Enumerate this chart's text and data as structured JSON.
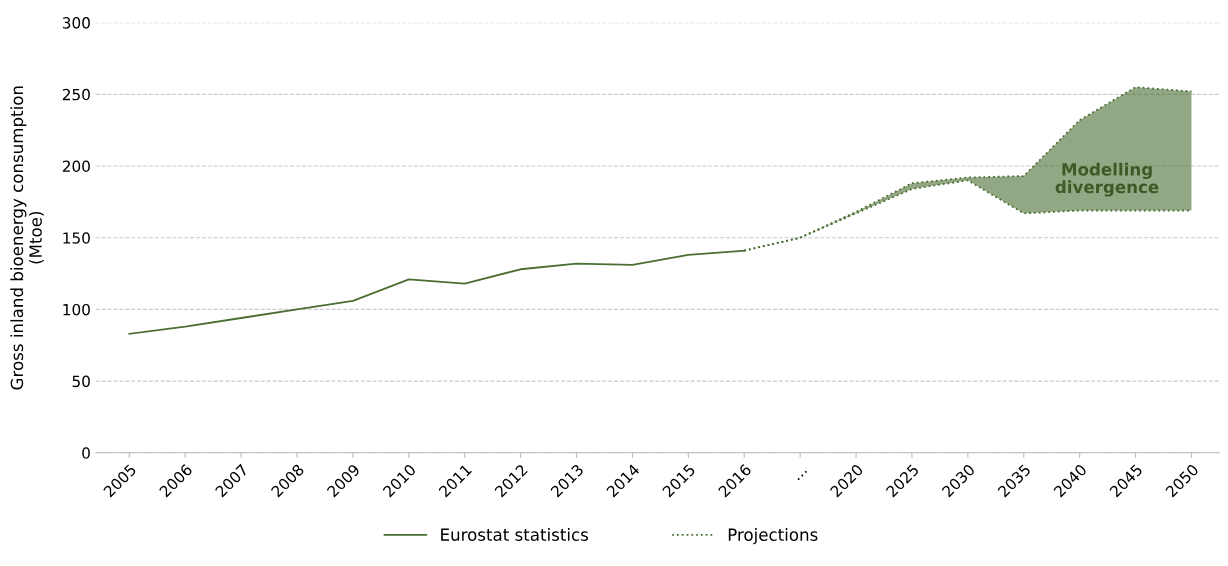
{
  "chart_data": {
    "type": "line",
    "ylabel": "Gross inland bioenergy consumption\n(Mtoe)",
    "categories": [
      "2005",
      "2006",
      "2007",
      "2008",
      "2009",
      "2010",
      "2011",
      "2012",
      "2013",
      "2014",
      "2015",
      "2016",
      "…",
      "2020",
      "2025",
      "2030",
      "2035",
      "2040",
      "2045",
      "2050"
    ],
    "series": [
      {
        "name": "Eurostat statistics",
        "color": "#4a6e32",
        "line_style": "solid",
        "values": [
          83,
          88,
          94,
          100,
          106,
          121,
          118,
          128,
          132,
          131,
          138,
          141,
          null,
          null,
          null,
          null,
          null,
          null,
          null,
          null
        ]
      },
      {
        "name": "Projections",
        "color": "#4a6e32",
        "line_style": "dotted",
        "values": [
          null,
          null,
          null,
          null,
          null,
          null,
          null,
          null,
          null,
          null,
          null,
          141,
          150,
          168,
          188,
          192,
          193,
          232,
          255,
          252
        ],
        "lower": [
          null,
          null,
          null,
          null,
          null,
          null,
          null,
          null,
          null,
          null,
          null,
          141,
          150,
          167,
          184,
          190,
          167,
          169,
          169,
          169
        ],
        "upper": [
          null,
          null,
          null,
          null,
          null,
          null,
          null,
          null,
          null,
          null,
          null,
          141,
          150,
          168,
          188,
          192,
          193,
          232,
          255,
          252
        ]
      },
      {
        "color": "#4a6e32",
        "line_style": "dotted",
        "values": [
          null,
          null,
          null,
          null,
          null,
          null,
          null,
          null,
          null,
          null,
          null,
          141,
          150,
          167,
          184,
          190,
          167,
          169,
          169,
          169
        ]
      }
    ],
    "ylim": [
      0,
      300
    ],
    "yticks": [
      0,
      50,
      100,
      150,
      200,
      250,
      300
    ],
    "grid": "y",
    "legend": "bottom",
    "marker": "none",
    "annotations": [
      "Modelling\ndivergence"
    ]
  }
}
